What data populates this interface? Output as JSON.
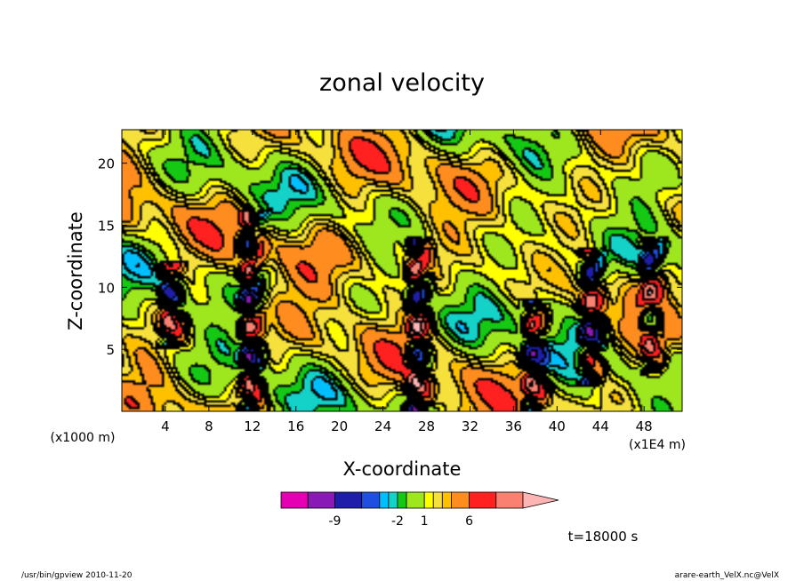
{
  "chart_data": {
    "type": "heatmap",
    "title": "zonal velocity",
    "xlabel": "X-coordinate",
    "ylabel": "Z-coordinate",
    "x_unit_left": "(x1000 m)",
    "x_unit_right": "(x1E4 m)",
    "xlim": [
      0,
      51.5
    ],
    "ylim": [
      0,
      22.7
    ],
    "x_ticks": [
      4,
      8,
      12,
      16,
      20,
      24,
      28,
      32,
      36,
      40,
      44,
      48
    ],
    "y_ticks": [
      5,
      10,
      15,
      20
    ],
    "levels": [
      -12,
      -9,
      -6,
      -4,
      -3,
      -2,
      -1,
      1,
      2,
      3,
      4,
      6,
      9,
      12
    ],
    "colors": [
      "#e600b4",
      "#8a1ab5",
      "#1e1eaa",
      "#1f4fe0",
      "#00bfff",
      "#14d2c8",
      "#14c814",
      "#9ee61e",
      "#ffff00",
      "#f5e03c",
      "#ffc000",
      "#ff8c1e",
      "#ff2020",
      "#fa8072",
      "#ffb4b4"
    ],
    "colorbar_labels": [
      {
        "value": -9,
        "label": "-9"
      },
      {
        "value": -2,
        "label": "-2"
      },
      {
        "value": 1,
        "label": "1"
      },
      {
        "value": 6,
        "label": "6"
      }
    ],
    "features": [
      {
        "x": 4.3,
        "zmin": 5,
        "zmax": 12,
        "peak": -7
      },
      {
        "x": 11.7,
        "zmin": 0,
        "zmax": 16,
        "peak": -9
      },
      {
        "x": 27,
        "zmin": 0,
        "zmax": 14,
        "peak": -9
      },
      {
        "x": 37.6,
        "zmin": 0,
        "zmax": 9,
        "peak": -8
      },
      {
        "x": 43,
        "zmin": 2,
        "zmax": 13,
        "peak": -8
      },
      {
        "x": 48.5,
        "zmin": 3,
        "zmax": 14,
        "peak": -7
      }
    ],
    "annotation": "t=18000 s"
  },
  "footer": {
    "left": "/usr/bin/gpview   2010-11-20",
    "right": "arare-earth_VelX.nc@VelX"
  }
}
